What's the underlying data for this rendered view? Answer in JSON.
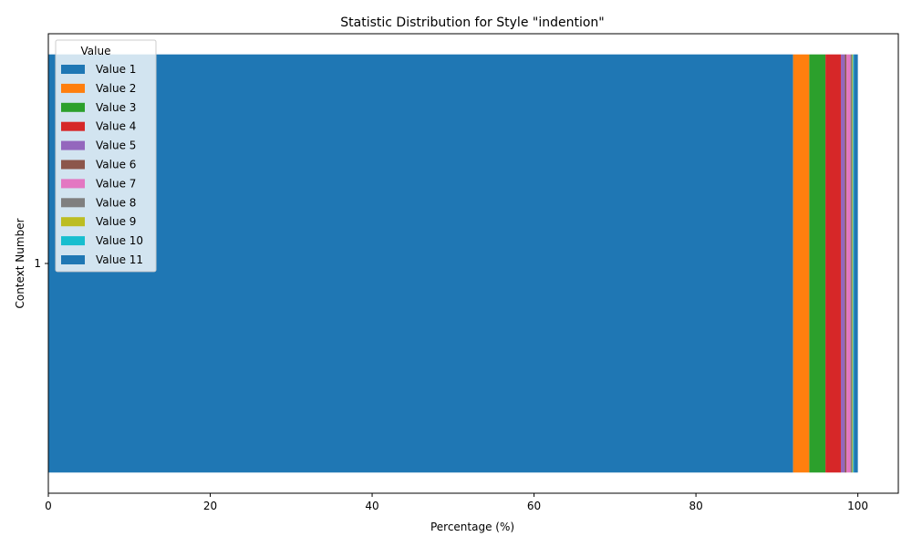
{
  "chart_data": {
    "type": "bar",
    "orientation": "horizontal",
    "stacked": true,
    "title": "Statistic Distribution for Style \"indention\"",
    "xlabel": "Percentage (%)",
    "ylabel": "Context Number",
    "categories": [
      "1"
    ],
    "xlim": [
      0,
      105
    ],
    "xticks": [
      0,
      20,
      40,
      60,
      80,
      100
    ],
    "grid": false,
    "legend": {
      "title": "Value",
      "placement": "top-left"
    },
    "series": [
      {
        "name": "Value 1",
        "values": [
          92.0
        ],
        "color": "#1f77b4"
      },
      {
        "name": "Value 2",
        "values": [
          2.0
        ],
        "color": "#ff7f0e"
      },
      {
        "name": "Value 3",
        "values": [
          2.0
        ],
        "color": "#2ca02c"
      },
      {
        "name": "Value 4",
        "values": [
          1.9
        ],
        "color": "#d62728"
      },
      {
        "name": "Value 5",
        "values": [
          0.5
        ],
        "color": "#9467bd"
      },
      {
        "name": "Value 6",
        "values": [
          0.2
        ],
        "color": "#8c564b"
      },
      {
        "name": "Value 7",
        "values": [
          0.5
        ],
        "color": "#e377c2"
      },
      {
        "name": "Value 8",
        "values": [
          0.2
        ],
        "color": "#7f7f7f"
      },
      {
        "name": "Value 9",
        "values": [
          0.1
        ],
        "color": "#bcbd22"
      },
      {
        "name": "Value 10",
        "values": [
          0.1
        ],
        "color": "#17becf"
      },
      {
        "name": "Value 11",
        "values": [
          0.5
        ],
        "color": "#1f77b4"
      }
    ]
  }
}
